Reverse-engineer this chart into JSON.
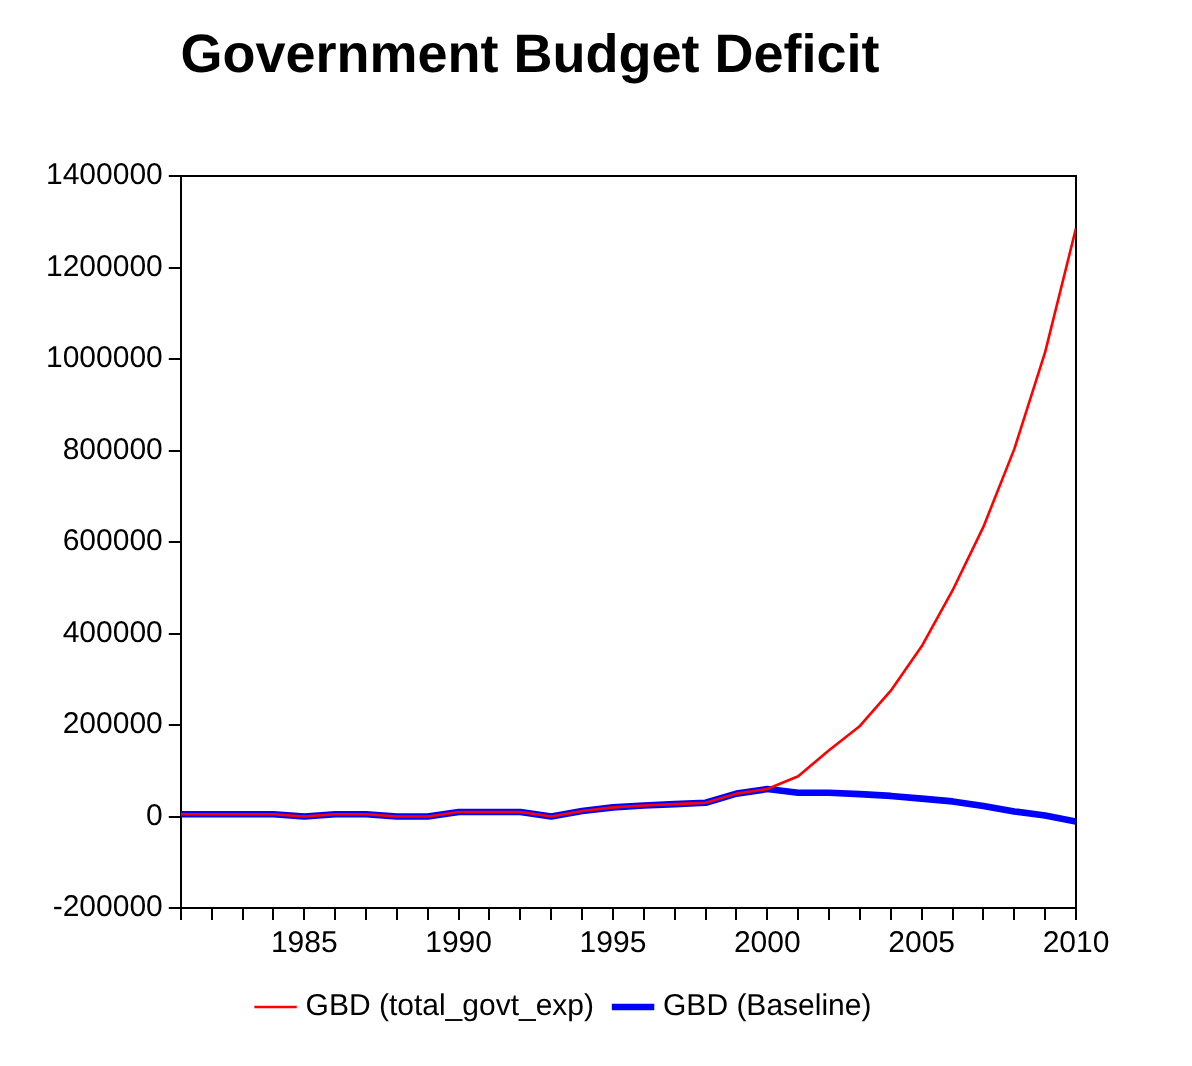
{
  "chart_data": {
    "type": "line",
    "title": "Government Budget Deficit",
    "x": [
      1981,
      1982,
      1983,
      1984,
      1985,
      1986,
      1987,
      1988,
      1989,
      1990,
      1991,
      1992,
      1993,
      1994,
      1995,
      1996,
      1997,
      1998,
      1999,
      2000,
      2001,
      2002,
      2003,
      2004,
      2005,
      2006,
      2007,
      2008,
      2009,
      2010
    ],
    "series": [
      {
        "name": "GBD (Baseline)",
        "color": "#0000ff",
        "values": [
          5000,
          5000,
          5000,
          5000,
          0,
          5000,
          5000,
          0,
          0,
          10000,
          10000,
          10000,
          0,
          12000,
          20000,
          24000,
          27000,
          30000,
          50000,
          60000,
          52000,
          52000,
          49000,
          45000,
          39000,
          33000,
          23000,
          11000,
          2000,
          -11000
        ]
      },
      {
        "name": "GBD (total_govt_exp)",
        "color": "#ff0000",
        "values": [
          5000,
          5000,
          5000,
          5000,
          0,
          5000,
          5000,
          0,
          0,
          10000,
          10000,
          10000,
          0,
          12000,
          20000,
          24000,
          27000,
          30000,
          50000,
          60000,
          88000,
          145000,
          198000,
          275000,
          372000,
          494000,
          633000,
          803000,
          1015000,
          1286000
        ]
      }
    ],
    "xlim": [
      1981,
      2010
    ],
    "xticks": [
      {
        "value": 1981,
        "label": null
      },
      {
        "value": 1982,
        "label": null
      },
      {
        "value": 1983,
        "label": null
      },
      {
        "value": 1984,
        "label": null
      },
      1985,
      {
        "value": 1986,
        "label": null
      },
      {
        "value": 1987,
        "label": null
      },
      {
        "value": 1988,
        "label": null
      },
      {
        "value": 1989,
        "label": null
      },
      1990,
      {
        "value": 1991,
        "label": null
      },
      {
        "value": 1992,
        "label": null
      },
      {
        "value": 1993,
        "label": null
      },
      {
        "value": 1994,
        "label": null
      },
      1995,
      {
        "value": 1996,
        "label": null
      },
      {
        "value": 1997,
        "label": null
      },
      {
        "value": 1998,
        "label": null
      },
      {
        "value": 1999,
        "label": null
      },
      2000,
      {
        "value": 2001,
        "label": null
      },
      {
        "value": 2002,
        "label": null
      },
      {
        "value": 2003,
        "label": null
      },
      {
        "value": 2004,
        "label": null
      },
      2005,
      {
        "value": 2006,
        "label": null
      },
      {
        "value": 2007,
        "label": null
      },
      {
        "value": 2008,
        "label": null
      },
      {
        "value": 2009,
        "label": null
      },
      2010
    ],
    "ylim": [
      -200000,
      1400000
    ],
    "yticks": [
      -200000,
      0,
      200000,
      400000,
      600000,
      800000,
      1000000,
      1200000,
      1400000
    ],
    "grid": false,
    "legend": "bottom",
    "marker": "none",
    "line_style": "solid"
  }
}
